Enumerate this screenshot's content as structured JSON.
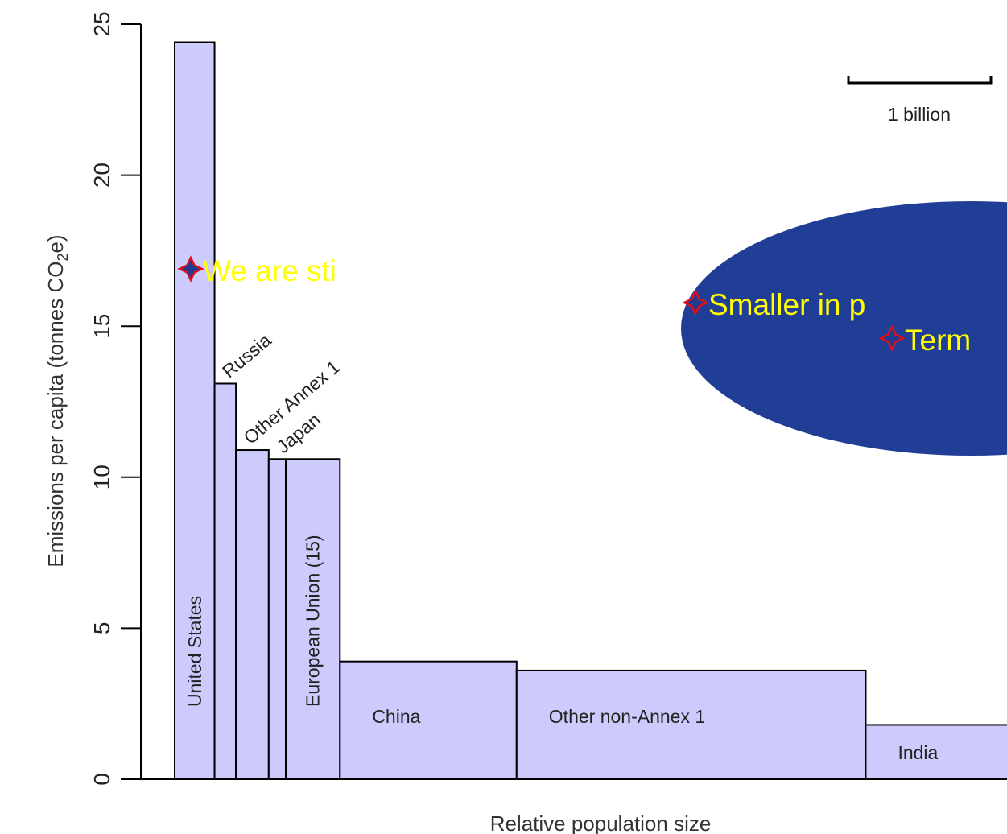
{
  "chart_data": {
    "type": "bar",
    "subtype": "variable-width",
    "xlabel": "Relative population size",
    "ylabel_main": "Emissions per capita (tonnes CO",
    "ylabel_sub": "2",
    "ylabel_tail": "e)",
    "ylim": [
      0,
      25
    ],
    "yticks": [
      0,
      5,
      10,
      15,
      20,
      25
    ],
    "grid": false,
    "bar_color": "#cccbfc",
    "bars": [
      {
        "name": "United States",
        "value": 24.4,
        "population": 0.28
      },
      {
        "name": "Russia",
        "value": 13.1,
        "population": 0.15
      },
      {
        "name": "Other Annex 1",
        "value": 10.9,
        "population": 0.23
      },
      {
        "name": "Japan",
        "value": 10.6,
        "population": 0.12
      },
      {
        "name": "European Union (15)",
        "value": 10.6,
        "population": 0.38
      },
      {
        "name": "China",
        "value": 3.9,
        "population": 1.24
      },
      {
        "name": "Other non-Annex 1",
        "value": 3.6,
        "population": 2.45
      },
      {
        "name": "India",
        "value": 1.8,
        "population": 1.0
      }
    ],
    "scale_bar": {
      "label": "1 billion",
      "value": 1
    }
  },
  "callout": {
    "color": "#213e96",
    "lines": [
      "We are sti",
      "Smaller in p",
      "Term"
    ]
  }
}
